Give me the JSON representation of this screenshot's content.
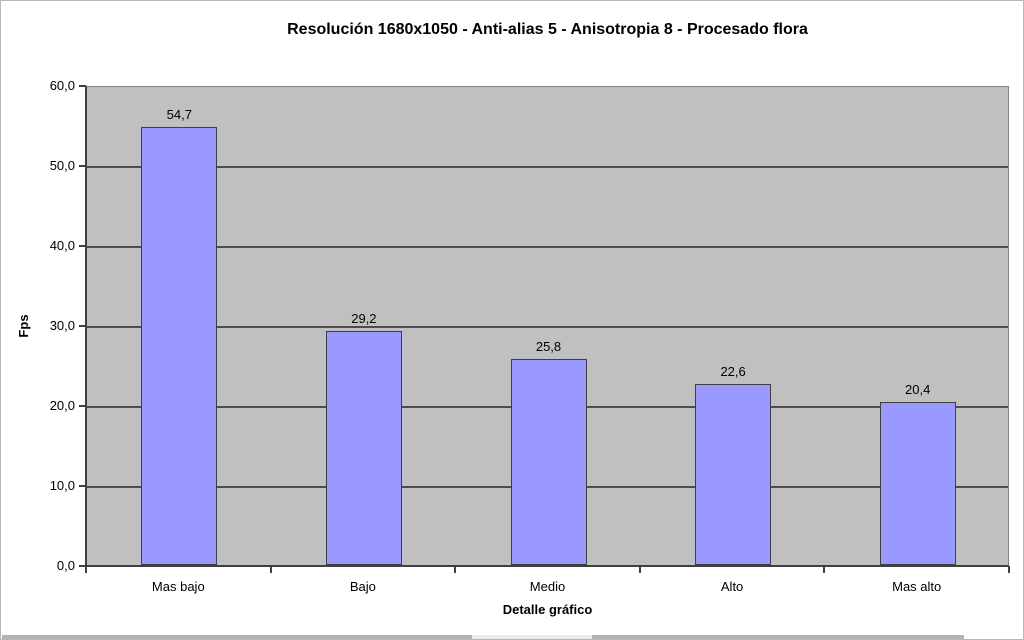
{
  "chart_data": {
    "type": "bar",
    "title": "Resolución 1680x1050 - Anti-alias 5 - Anisotropia 8 - Procesado flora",
    "xlabel": "Detalle gráfico",
    "ylabel": "Fps",
    "categories": [
      "Mas bajo",
      "Bajo",
      "Medio",
      "Alto",
      "Mas alto"
    ],
    "values": [
      54.7,
      29.2,
      25.8,
      22.6,
      20.4
    ],
    "value_labels": [
      "54,7",
      "29,2",
      "25,8",
      "22,6",
      "20,4"
    ],
    "ylim": [
      0,
      60
    ],
    "ytick_step": 10,
    "ytick_labels": [
      "0,0",
      "10,0",
      "20,0",
      "30,0",
      "40,0",
      "50,0",
      "60,0"
    ],
    "grid": true,
    "legend": false,
    "colors": {
      "bar_fill": "#9999FF",
      "bar_border": "#3F3F3F",
      "plot_background": "#C0C0C0",
      "gridline": "#4D4D4D",
      "page_background": "#FFFFFF"
    }
  }
}
